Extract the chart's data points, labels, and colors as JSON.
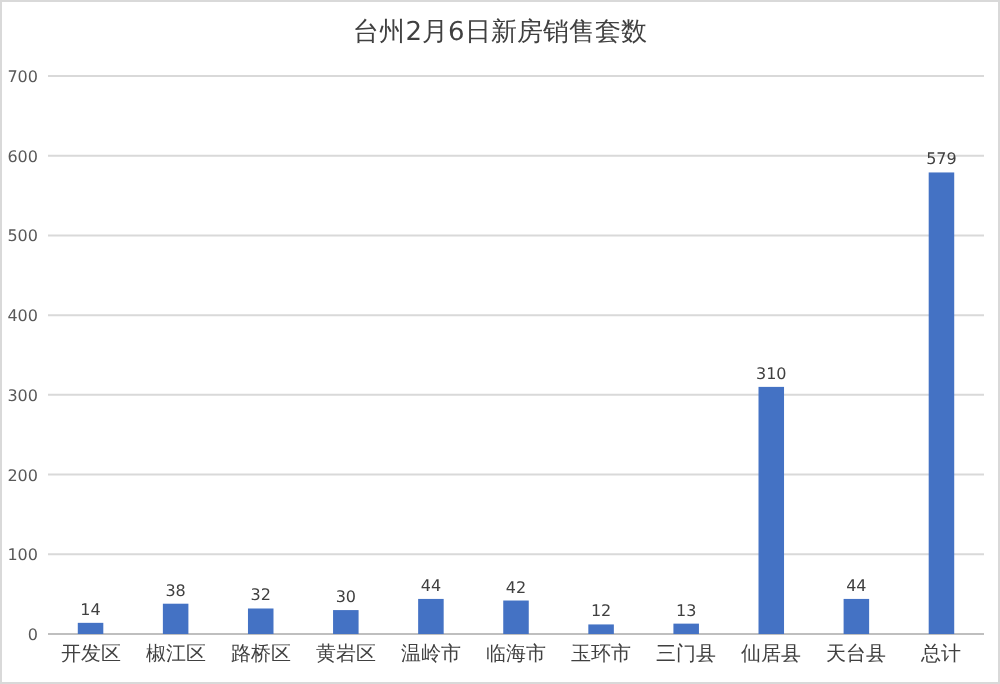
{
  "chart_data": {
    "type": "bar",
    "title": "台州2月6日新房销售套数",
    "categories": [
      "开发区",
      "椒江区",
      "路桥区",
      "黄岩区",
      "温岭市",
      "临海市",
      "玉环市",
      "三门县",
      "仙居县",
      "天台县",
      "总计"
    ],
    "values": [
      14,
      38,
      32,
      30,
      44,
      42,
      12,
      13,
      310,
      44,
      579
    ],
    "color": "#4472c4",
    "ylim": [
      0,
      700
    ],
    "yticks": [
      0,
      100,
      200,
      300,
      400,
      500,
      600,
      700
    ],
    "grid": "y",
    "data_labels": true
  }
}
